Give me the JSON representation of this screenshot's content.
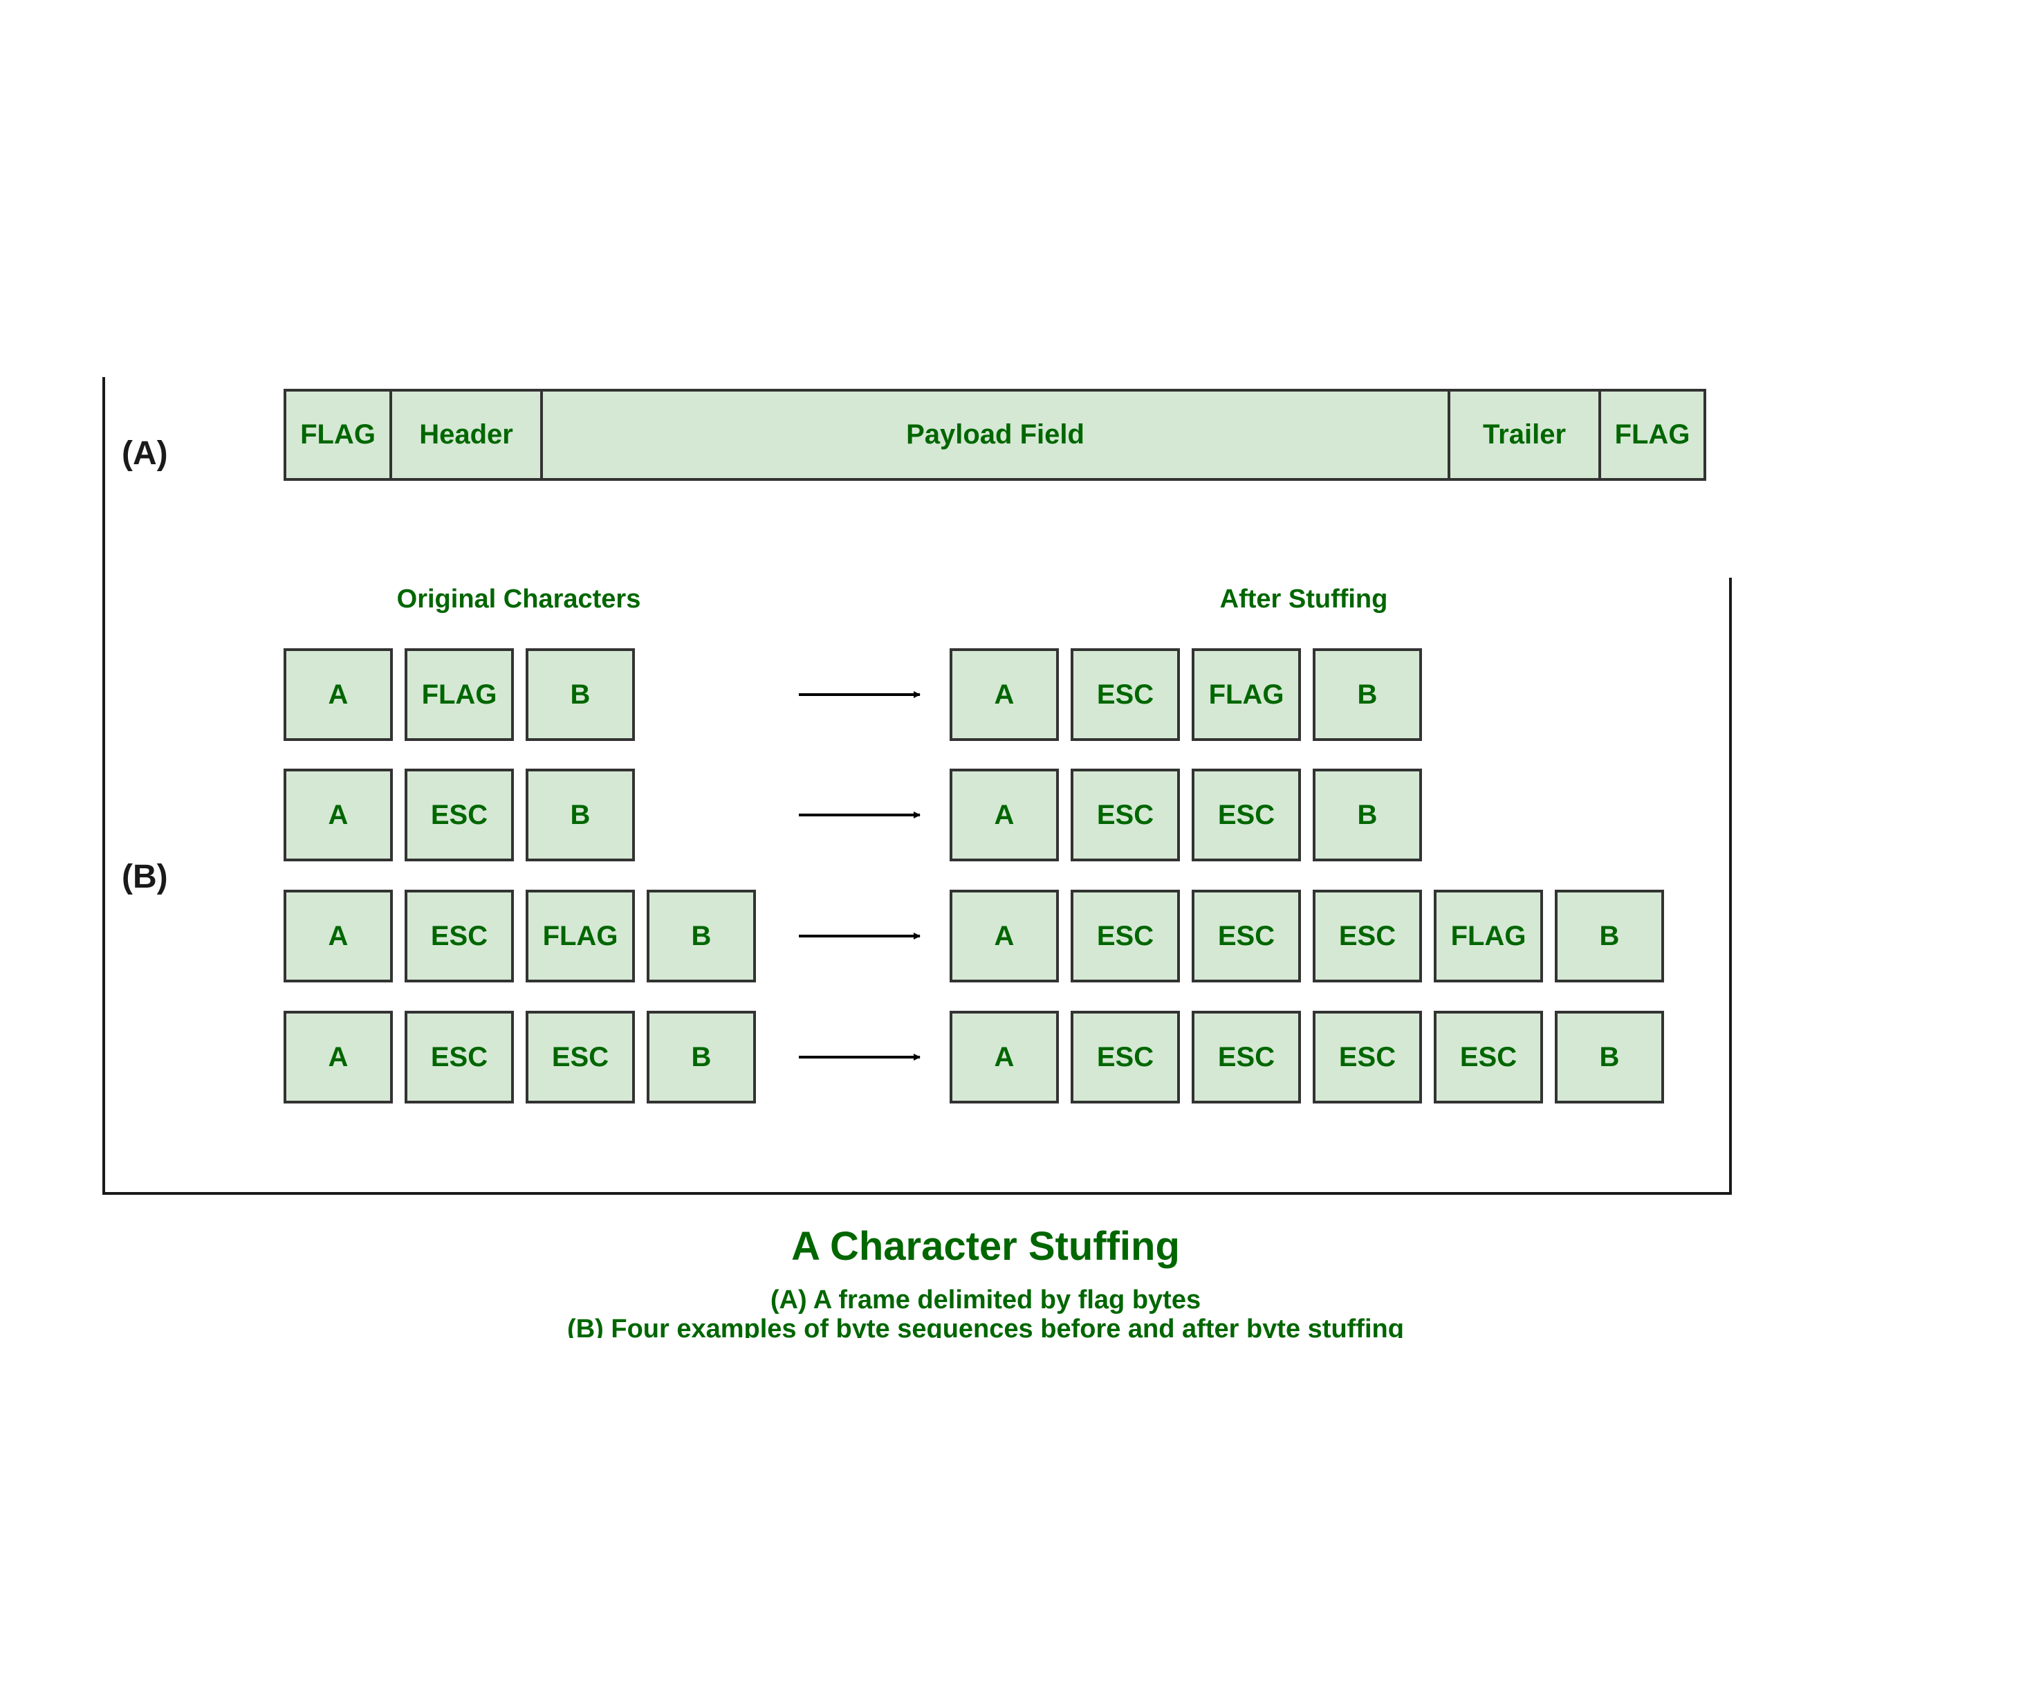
{
  "section_a_label": "(A)",
  "section_b_label": "(B)",
  "frame_fields": [
    "FLAG",
    "Header",
    "Payload Field",
    "Trailer",
    "FLAG"
  ],
  "headings": {
    "original": "Original Characters",
    "stuffed": "After Stuffing"
  },
  "examples": [
    {
      "original": [
        "A",
        "FLAG",
        "B"
      ],
      "stuffed": [
        "A",
        "ESC",
        "FLAG",
        "B"
      ]
    },
    {
      "original": [
        "A",
        "ESC",
        "B"
      ],
      "stuffed": [
        "A",
        "ESC",
        "ESC",
        "B"
      ]
    },
    {
      "original": [
        "A",
        "ESC",
        "FLAG",
        "B"
      ],
      "stuffed": [
        "A",
        "ESC",
        "ESC",
        "ESC",
        "FLAG",
        "B"
      ]
    },
    {
      "original": [
        "A",
        "ESC",
        "ESC",
        "B"
      ],
      "stuffed": [
        "A",
        "ESC",
        "ESC",
        "ESC",
        "ESC",
        "B"
      ]
    }
  ],
  "caption": {
    "title": "A Character Stuffing",
    "line1": "(A) A frame delimited by flag bytes",
    "line2": "(B) Four examples of byte sequences before and after byte stuffing"
  },
  "colors": {
    "cell_fill": "#d5e8d4",
    "text_green": "#006600",
    "border": "#333333"
  }
}
